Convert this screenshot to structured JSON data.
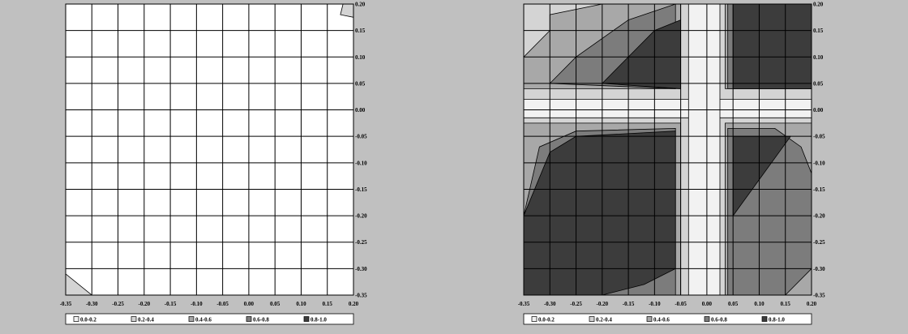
{
  "colors": {
    "background": "#c0c0c0",
    "plot_area": "#ffffff",
    "grid": "#000000",
    "bands": [
      "#f2f2f2",
      "#d4d4d4",
      "#a8a8a8",
      "#7c7c7c",
      "#3c3c3c"
    ]
  },
  "chart_data": [
    {
      "type": "heatmap",
      "title": "",
      "xlabel": "",
      "ylabel": "",
      "x_ticks": [
        "-0.35",
        "-0.30",
        "-0.25",
        "-0.20",
        "-0.15",
        "-0.10",
        "-0.05",
        "0.00",
        "0.05",
        "0.10",
        "0.15",
        "0.20"
      ],
      "y_ticks": [
        "0.20",
        "0.15",
        "0.10",
        "0.05",
        "0.00",
        "-0.05",
        "-0.10",
        "-0.15",
        "-0.20",
        "-0.25",
        "-0.30",
        "-0.35"
      ],
      "xlim": [
        -0.35,
        0.2
      ],
      "ylim": [
        -0.35,
        0.2
      ],
      "grid": true,
      "legend_position": "bottom",
      "legend": [
        "0.0-0.2",
        "0.2-0.4",
        "0.4-0.6",
        "0.6-0.8",
        "0.8-1.0"
      ],
      "regions": [
        {
          "band": "0.2-0.4",
          "x": [
            -0.35,
            -0.35,
            -0.3
          ],
          "y": [
            -0.35,
            -0.31,
            -0.35
          ]
        },
        {
          "band": "0.2-0.4",
          "x": [
            0.18,
            0.2,
            0.2,
            0.175
          ],
          "y": [
            0.2,
            0.2,
            0.175,
            0.18
          ]
        }
      ]
    },
    {
      "type": "heatmap",
      "title": "",
      "xlabel": "",
      "ylabel": "",
      "x_ticks": [
        "-0.35",
        "-0.30",
        "-0.25",
        "-0.20",
        "-0.15",
        "-0.10",
        "-0.05",
        "0.00",
        "0.05",
        "0.10",
        "0.15",
        "0.20"
      ],
      "y_ticks": [
        "0.20",
        "0.15",
        "0.10",
        "0.05",
        "0.00",
        "-0.05",
        "-0.10",
        "-0.15",
        "-0.20",
        "-0.25",
        "-0.30",
        "-0.35"
      ],
      "xlim": [
        -0.35,
        0.2
      ],
      "ylim": [
        -0.35,
        0.2
      ],
      "grid": true,
      "legend_position": "bottom",
      "legend": [
        "0.0-0.2",
        "0.2-0.4",
        "0.4-0.6",
        "0.6-0.8",
        "0.8-1.0"
      ],
      "regions": [
        {
          "band": "0.2-0.4",
          "x": [
            -0.35,
            0.2,
            0.2,
            -0.35
          ],
          "y": [
            -0.35,
            -0.35,
            0.2,
            0.2
          ]
        },
        {
          "band": "0.4-0.6",
          "x": [
            -0.35,
            -0.35,
            -0.3,
            -0.3,
            -0.2,
            -0.12,
            -0.05,
            -0.05,
            -0.35
          ],
          "y": [
            0.04,
            0.1,
            0.15,
            0.18,
            0.2,
            0.2,
            0.2,
            0.04,
            0.04
          ]
        },
        {
          "band": "0.4-0.6",
          "x": [
            0.035,
            0.035,
            0.2,
            0.2,
            0.035
          ],
          "y": [
            0.04,
            0.2,
            0.2,
            0.04,
            0.04
          ]
        },
        {
          "band": "0.4-0.6",
          "x": [
            -0.35,
            -0.35,
            -0.05,
            -0.05,
            -0.35
          ],
          "y": [
            -0.35,
            -0.025,
            -0.025,
            -0.35,
            -0.35
          ]
        },
        {
          "band": "0.4-0.6",
          "x": [
            0.035,
            0.035,
            0.2,
            0.2,
            0.035
          ],
          "y": [
            -0.35,
            -0.025,
            -0.025,
            -0.35,
            -0.35
          ]
        },
        {
          "band": "0.6-0.8",
          "x": [
            -0.3,
            -0.25,
            -0.15,
            -0.06,
            -0.06,
            -0.3
          ],
          "y": [
            0.05,
            0.1,
            0.17,
            0.2,
            0.04,
            0.05
          ]
        },
        {
          "band": "0.6-0.8",
          "x": [
            0.04,
            0.04,
            0.2,
            0.2,
            0.04
          ],
          "y": [
            0.04,
            0.2,
            0.2,
            0.04,
            0.04
          ]
        },
        {
          "band": "0.6-0.8",
          "x": [
            -0.35,
            -0.35,
            -0.32,
            -0.25,
            -0.06,
            -0.06,
            -0.1,
            -0.2,
            -0.35
          ],
          "y": [
            -0.35,
            -0.2,
            -0.07,
            -0.04,
            -0.035,
            -0.35,
            -0.35,
            -0.35,
            -0.35
          ]
        },
        {
          "band": "0.6-0.8",
          "x": [
            0.04,
            0.04,
            0.13,
            0.18,
            0.2,
            0.2,
            0.15,
            0.04
          ],
          "y": [
            -0.35,
            -0.035,
            -0.035,
            -0.07,
            -0.12,
            -0.3,
            -0.35,
            -0.35
          ]
        },
        {
          "band": "0.8-1.0",
          "x": [
            -0.2,
            -0.1,
            -0.05,
            -0.05,
            -0.2
          ],
          "y": [
            0.05,
            0.15,
            0.17,
            0.04,
            0.05
          ]
        },
        {
          "band": "0.8-1.0",
          "x": [
            0.05,
            0.05,
            0.2,
            0.2,
            0.05
          ],
          "y": [
            0.04,
            0.2,
            0.2,
            0.04,
            0.04
          ]
        },
        {
          "band": "0.8-1.0",
          "x": [
            -0.35,
            -0.35,
            -0.3,
            -0.25,
            -0.06,
            -0.06,
            -0.12,
            -0.2,
            -0.35
          ],
          "y": [
            -0.35,
            -0.2,
            -0.08,
            -0.05,
            -0.04,
            -0.3,
            -0.33,
            -0.35,
            -0.35
          ]
        },
        {
          "band": "0.8-1.0",
          "x": [
            0.05,
            0.05,
            0.16,
            0.05
          ],
          "y": [
            -0.2,
            -0.05,
            -0.05,
            -0.2
          ]
        },
        {
          "band": "0.0-0.2",
          "x": [
            -0.35,
            0.2,
            0.2,
            -0.35
          ],
          "y": [
            0.02,
            0.02,
            -0.015,
            -0.015
          ]
        },
        {
          "band": "0.0-0.2",
          "x": [
            -0.035,
            0.025,
            0.025,
            -0.035
          ],
          "y": [
            -0.35,
            -0.35,
            0.2,
            0.2
          ]
        }
      ]
    }
  ]
}
